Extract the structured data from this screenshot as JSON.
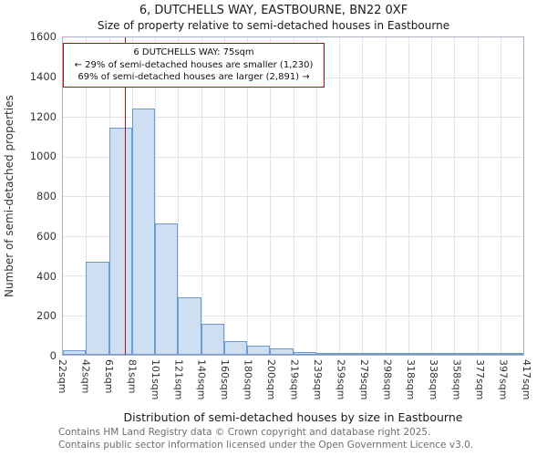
{
  "title": "6, DUTCHELLS WAY, EASTBOURNE, BN22 0XF",
  "subtitle": "Size of property relative to semi-detached houses in Eastbourne",
  "chart_data": {
    "type": "bar",
    "categories": [
      "22sqm",
      "42sqm",
      "61sqm",
      "81sqm",
      "101sqm",
      "121sqm",
      "140sqm",
      "160sqm",
      "180sqm",
      "200sqm",
      "219sqm",
      "239sqm",
      "259sqm",
      "279sqm",
      "298sqm",
      "318sqm",
      "338sqm",
      "358sqm",
      "377sqm",
      "397sqm",
      "417sqm"
    ],
    "bin_edges": [
      22,
      42,
      61,
      81,
      101,
      121,
      140,
      160,
      180,
      200,
      219,
      239,
      259,
      279,
      298,
      318,
      338,
      358,
      377,
      397,
      417
    ],
    "values": [
      25,
      470,
      1145,
      1240,
      660,
      290,
      155,
      70,
      45,
      33,
      15,
      10,
      8,
      6,
      4,
      3,
      3,
      2,
      2,
      2
    ],
    "title": "6, DUTCHELLS WAY, EASTBOURNE, BN22 0XF",
    "subtitle": "Size of property relative to semi-detached houses in Eastbourne",
    "xlabel": "Distribution of semi-detached houses by size in Eastbourne",
    "ylabel": "Number of semi-detached properties",
    "ylim": [
      0,
      1600
    ],
    "ytick_step": 200,
    "grid": true,
    "legend": "none",
    "bar_fill": "#cfdff2",
    "bar_border": "#6d9ad0",
    "marker": {
      "sqm": 75,
      "color": "#a31515"
    },
    "annotation": {
      "line1": "6 DUTCHELLS WAY: 75sqm",
      "line2": "← 29% of semi-detached houses are smaller (1,230)",
      "line3": "69% of semi-detached houses are larger (2,891) →",
      "border_color": "#cc0000"
    }
  },
  "footer": {
    "line1": "Contains HM Land Registry data © Crown copyright and database right 2025.",
    "line2": "Contains public sector information licensed under the Open Government Licence v3.0."
  }
}
